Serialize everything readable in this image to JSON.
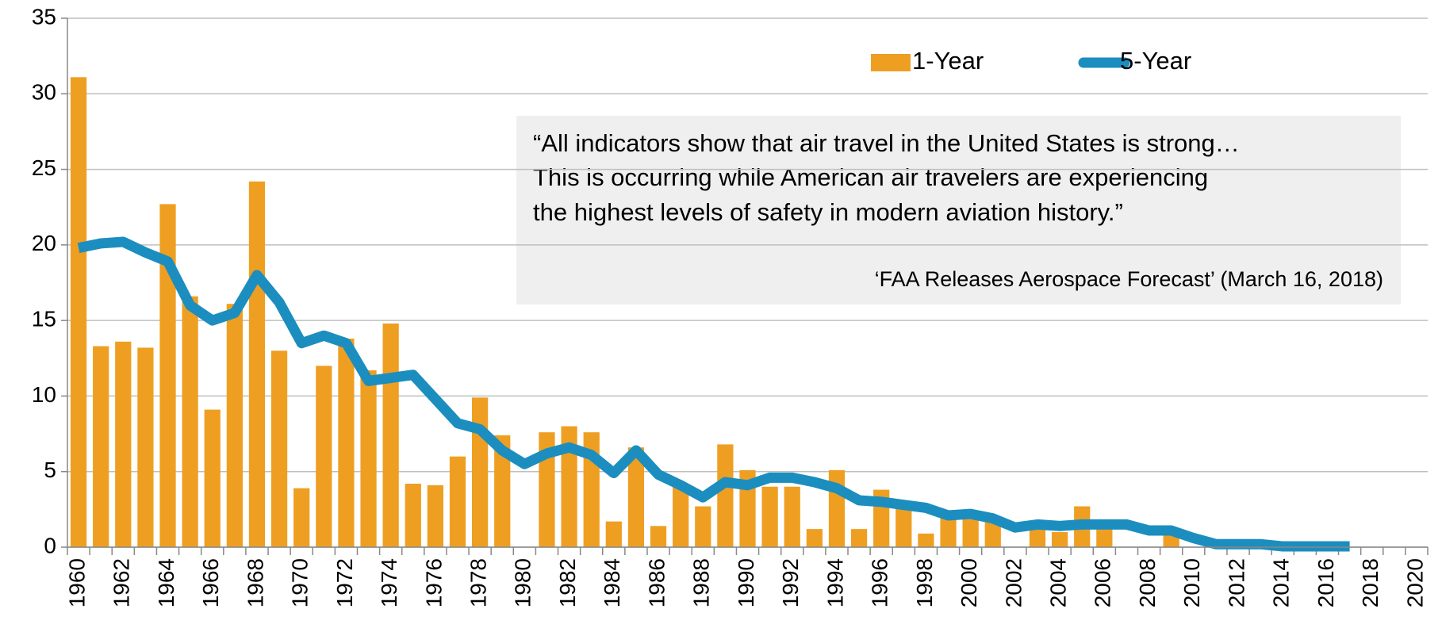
{
  "chart_data": {
    "type": "bar+line",
    "categories": [
      "1960",
      null,
      "1962",
      null,
      "1964",
      null,
      "1966",
      null,
      "1968",
      null,
      "1970",
      null,
      "1972",
      null,
      "1974",
      null,
      "1976",
      null,
      "1978",
      null,
      "1980",
      null,
      "1982",
      null,
      "1984",
      null,
      "1986",
      null,
      "1988",
      null,
      "1990",
      null,
      "1992",
      null,
      "1994",
      null,
      "1996",
      null,
      "1998",
      null,
      "2000",
      null,
      "2002",
      null,
      "2004",
      null,
      "2006",
      null,
      "2008",
      null,
      "2010",
      null,
      "2012",
      null,
      "2014",
      null,
      "2016",
      null,
      "2018",
      null,
      "2020"
    ],
    "series": [
      {
        "name": "1-Year",
        "type": "bar",
        "color": "#ee9f22",
        "values": [
          31.1,
          13.3,
          13.6,
          13.2,
          22.7,
          16.6,
          9.1,
          16.1,
          24.2,
          13.0,
          3.9,
          12.0,
          13.8,
          11.7,
          14.8,
          4.2,
          4.1,
          6.0,
          9.9,
          7.4,
          0,
          7.6,
          8.0,
          7.6,
          1.7,
          6.6,
          1.4,
          4.0,
          2.7,
          6.8,
          5.1,
          4.0,
          4.0,
          1.2,
          5.1,
          1.2,
          3.8,
          2.6,
          0.9,
          2.0,
          2.0,
          1.7,
          0,
          1.3,
          1.0,
          2.7,
          1.3,
          0,
          0,
          1.0,
          0,
          0,
          0,
          0,
          0,
          0,
          0,
          0,
          null,
          null,
          null
        ]
      },
      {
        "name": "5-Year",
        "type": "line",
        "color": "#1b8ebf",
        "values": [
          19.8,
          20.1,
          20.2,
          19.5,
          18.9,
          16.0,
          15.0,
          15.5,
          18.0,
          16.2,
          13.5,
          14.0,
          13.5,
          11.0,
          11.2,
          11.4,
          9.8,
          8.2,
          7.8,
          6.4,
          5.5,
          6.2,
          6.6,
          6.1,
          4.9,
          6.4,
          4.8,
          4.1,
          3.3,
          4.3,
          4.1,
          4.6,
          4.6,
          4.3,
          3.9,
          3.1,
          3.0,
          2.8,
          2.6,
          2.1,
          2.2,
          1.9,
          1.3,
          1.5,
          1.4,
          1.5,
          1.5,
          1.5,
          1.1,
          1.1,
          0.6,
          0.2,
          0.2,
          0.2,
          0.05,
          0.05,
          0.05,
          0.05,
          null,
          null,
          null
        ]
      }
    ],
    "ylim": [
      0,
      35
    ],
    "yticks": [
      0,
      5,
      10,
      15,
      20,
      25,
      30,
      35
    ],
    "grid": true,
    "legend": "top",
    "annotation": {
      "quote": [
        "“All indicators show that air travel in the United States is strong…",
        "This is occurring while American air travelers are experiencing",
        "the highest levels of safety in modern aviation history.”"
      ],
      "source": "‘FAA Releases Aerospace Forecast’ (March 16, 2018)"
    }
  }
}
